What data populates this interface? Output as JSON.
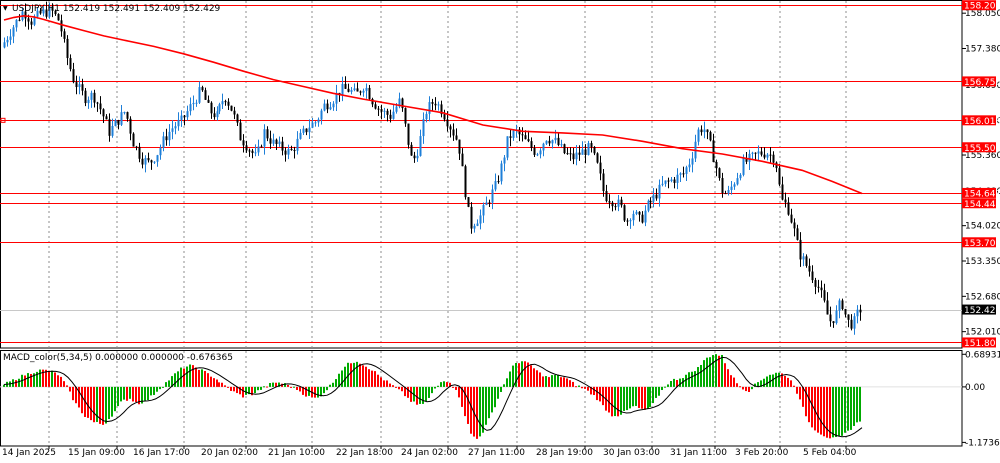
{
  "window": {
    "symbol_header": "USDJPY,H1  152.419 152.491 152.409 152.429",
    "indicator_header": "MACD_color(5,34,5) 0.000000 0.000000 -0.676365"
  },
  "colors": {
    "background": "#ffffff",
    "bull_candle": "#1e7fd8",
    "bear_candle": "#000000",
    "moving_average": "#ff0000",
    "level_line": "#ff0000",
    "level_label_bg": "#ff0000",
    "level_label_text": "#ffffff",
    "current_price_bg": "#000000",
    "current_price_text": "#ffffff",
    "macd_positive": "#00aa00",
    "macd_negative": "#ff0000",
    "macd_signal": "#000000",
    "grid": "#8c8c8c"
  },
  "chart_data": [
    {
      "type": "candlestick",
      "symbol": "USDJPY",
      "timeframe": "H1",
      "ohlc_current": {
        "open": 152.419,
        "high": 152.491,
        "low": 152.409,
        "close": 152.429
      },
      "ylim": [
        151.7,
        158.3
      ],
      "y_ticks": [
        158.05,
        157.38,
        156.69,
        156.01,
        155.36,
        154.68,
        154.02,
        153.35,
        152.68,
        152.01
      ],
      "y_tick_labels": [
        "158.050",
        "157.380",
        "156.690",
        "156.010",
        "155.360",
        "154.680",
        "154.020",
        "153.350",
        "152.680",
        "152.010"
      ],
      "x_tick_labels": [
        "14 Jan 2025",
        "15 Jan 09:00",
        "16 Jan 17:00",
        "20 Jan 02:00",
        "21 Jan 10:00",
        "22 Jan 18:00",
        "24 Jan 02:00",
        "27 Jan 11:00",
        "28 Jan 19:00",
        "30 Jan 03:00",
        "31 Jan 11:00",
        "3 Feb 20:00",
        "5 Feb 04:00"
      ],
      "price_levels": [
        158.201,
        156.756,
        156.018,
        155.507,
        154.641,
        154.445,
        153.705,
        151.805
      ],
      "price_level_labels": [
        "158.201",
        "156.756",
        "156.018",
        "155.507",
        "154.641",
        "154.445",
        "153.705",
        "151.805"
      ],
      "current_price": 152.429,
      "current_price_label": "152.429",
      "moving_average": {
        "x": [
          0,
          10,
          20,
          30,
          40,
          60,
          80,
          100,
          120,
          150,
          180,
          210,
          240,
          270,
          300,
          330,
          360,
          400,
          440,
          480,
          520,
          560,
          600,
          640,
          680,
          720,
          760,
          800,
          830,
          860
        ],
        "y": [
          157.92,
          157.97,
          158.0,
          157.98,
          157.93,
          157.82,
          157.72,
          157.62,
          157.54,
          157.42,
          157.28,
          157.12,
          156.95,
          156.79,
          156.66,
          156.53,
          156.42,
          156.29,
          156.16,
          155.93,
          155.81,
          155.78,
          155.74,
          155.62,
          155.48,
          155.38,
          155.24,
          155.07,
          154.86,
          154.63
        ]
      },
      "price_path": {
        "x": [
          0,
          12,
          22,
          30,
          40,
          50,
          58,
          66,
          72,
          78,
          84,
          92,
          100,
          108,
          116,
          124,
          132,
          140,
          148,
          156,
          164,
          172,
          180,
          190,
          200,
          208,
          216,
          224,
          232,
          240,
          248,
          256,
          264,
          272,
          280,
          290,
          300,
          308,
          316,
          324,
          332,
          340,
          348,
          356,
          364,
          372,
          380,
          390,
          400,
          406,
          412,
          418,
          426,
          434,
          442,
          450,
          458,
          464,
          470,
          474,
          480,
          488,
          496,
          502,
          508,
          516,
          526,
          536,
          546,
          556,
          564,
          572,
          580,
          590,
          598,
          604,
          612,
          620,
          626,
          632,
          640,
          648,
          656,
          664,
          674,
          684,
          692,
          698,
          704,
          710,
          716,
          722,
          728,
          736,
          744,
          752,
          760,
          768,
          776,
          782,
          788,
          794,
          800,
          806,
          812,
          818,
          824,
          830,
          836,
          842,
          848,
          854,
          860
        ],
        "y": [
          157.4,
          157.8,
          158.1,
          157.9,
          158.05,
          158.1,
          157.9,
          157.2,
          156.8,
          156.6,
          156.45,
          156.5,
          156.2,
          155.8,
          156.0,
          156.2,
          155.6,
          155.3,
          155.2,
          155.4,
          155.7,
          155.9,
          156.0,
          156.3,
          156.6,
          156.2,
          156.1,
          156.5,
          156.2,
          155.7,
          155.5,
          155.3,
          155.8,
          155.6,
          155.5,
          155.4,
          155.7,
          155.9,
          156.0,
          156.3,
          156.4,
          156.6,
          156.6,
          156.5,
          156.7,
          156.4,
          156.2,
          156.1,
          156.4,
          155.8,
          155.2,
          155.5,
          156.2,
          156.4,
          156.2,
          155.9,
          155.6,
          154.8,
          154.0,
          154.1,
          154.2,
          154.5,
          154.8,
          155.2,
          155.7,
          155.8,
          155.6,
          155.4,
          155.7,
          155.6,
          155.4,
          155.3,
          155.4,
          155.5,
          155.1,
          154.6,
          154.5,
          154.4,
          154.1,
          154.3,
          154.1,
          154.4,
          154.6,
          154.8,
          154.9,
          155.0,
          155.3,
          155.8,
          155.9,
          155.6,
          155.2,
          154.7,
          154.6,
          154.9,
          155.2,
          155.3,
          155.4,
          155.4,
          155.3,
          154.5,
          154.4,
          154.0,
          153.5,
          153.3,
          153.1,
          152.9,
          152.6,
          152.2,
          152.3,
          152.6,
          152.2,
          152.15,
          152.43
        ]
      }
    },
    {
      "type": "bar",
      "name": "MACD_color(5,34,5)",
      "values_current": [
        0.0,
        0.0,
        -0.676365
      ],
      "ylim": [
        -1.25,
        0.78
      ],
      "y_ticks": [
        0.689317,
        0.0,
        -1.173633
      ],
      "y_tick_labels": [
        "0.689317",
        "0.00",
        "-1.173633"
      ],
      "histogram": {
        "x": [
          0,
          20,
          35,
          45,
          55,
          62,
          70,
          80,
          90,
          100,
          110,
          118,
          126,
          134,
          142,
          150,
          160,
          170,
          178,
          186,
          194,
          202,
          210,
          220,
          230,
          240,
          250,
          258,
          266,
          274,
          284,
          294,
          304,
          314,
          322,
          330,
          338,
          346,
          354,
          362,
          370,
          378,
          388,
          398,
          408,
          416,
          424,
          432,
          440,
          448,
          456,
          462,
          468,
          474,
          480,
          488,
          496,
          504,
          512,
          520,
          528,
          536,
          544,
          552,
          562,
          572,
          582,
          592,
          600,
          608,
          616,
          624,
          632,
          640,
          648,
          656,
          664,
          672,
          680,
          688,
          696,
          704,
          712,
          720,
          728,
          736,
          746,
          756,
          766,
          776,
          784,
          792,
          800,
          808,
          816,
          824,
          832,
          840,
          848,
          856,
          860
        ],
        "y": [
          0.05,
          0.25,
          0.35,
          0.35,
          0.25,
          0.05,
          -0.3,
          -0.6,
          -0.75,
          -0.8,
          -0.55,
          -0.3,
          -0.25,
          -0.35,
          -0.3,
          -0.15,
          0.05,
          0.25,
          0.4,
          0.45,
          0.4,
          0.3,
          0.2,
          0.05,
          -0.1,
          -0.2,
          -0.15,
          -0.05,
          0.05,
          0.1,
          0.05,
          -0.05,
          -0.2,
          -0.25,
          -0.1,
          0.1,
          0.35,
          0.5,
          0.55,
          0.45,
          0.35,
          0.2,
          0.05,
          -0.1,
          -0.3,
          -0.4,
          -0.3,
          -0.05,
          0.15,
          0.1,
          -0.2,
          -0.6,
          -1.0,
          -1.1,
          -0.95,
          -0.6,
          -0.2,
          0.2,
          0.5,
          0.55,
          0.45,
          0.3,
          0.2,
          0.25,
          0.2,
          0.05,
          -0.05,
          -0.2,
          -0.4,
          -0.6,
          -0.6,
          -0.5,
          -0.4,
          -0.5,
          -0.45,
          -0.2,
          0.05,
          0.15,
          0.2,
          0.3,
          0.4,
          0.6,
          0.7,
          0.65,
          0.3,
          0.05,
          -0.1,
          0.1,
          0.25,
          0.3,
          0.25,
          0.05,
          -0.4,
          -0.8,
          -0.95,
          -1.05,
          -1.1,
          -1.05,
          -0.9,
          -0.75,
          -0.68
        ]
      }
    }
  ]
}
